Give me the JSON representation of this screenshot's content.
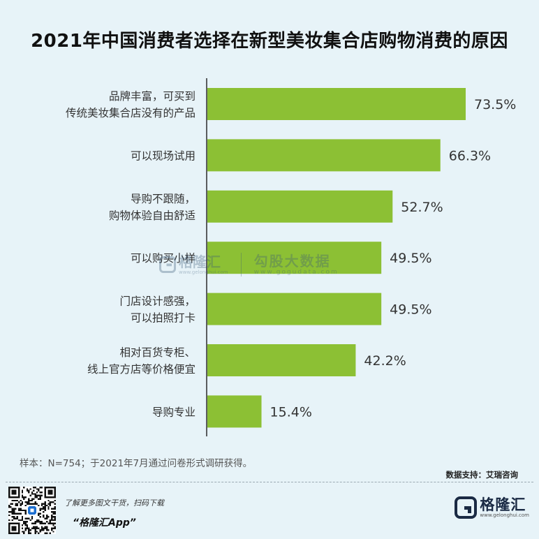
{
  "chart_data": {
    "type": "bar",
    "orientation": "horizontal",
    "title": "2021年中国消费者选择在新型美妆集合店购物消费的原因",
    "categories": [
      [
        "品牌丰富，可买到",
        "传统美妆集合店没有的产品"
      ],
      [
        "可以现场试用"
      ],
      [
        "导购不跟随，",
        "购物体验自由舒适"
      ],
      [
        "可以购买小样"
      ],
      [
        "门店设计感强，",
        "可以拍照打卡"
      ],
      [
        "相对百货专柜、",
        "线上官方店等价格便宜"
      ],
      [
        "导购专业"
      ]
    ],
    "values": [
      73.5,
      66.3,
      52.7,
      49.5,
      49.5,
      42.2,
      15.4
    ],
    "value_labels": [
      "73.5%",
      "66.3%",
      "52.7%",
      "49.5%",
      "49.5%",
      "42.2%",
      "15.4%"
    ],
    "xlim": [
      0,
      100
    ],
    "grid": false,
    "legend": "none",
    "bar_color": "#8cc034",
    "axis_color": "#2b2b2b"
  },
  "note": "样本：N=754；于2021年7月通过问卷形式调研获得。",
  "source": "数据支持：艾瑞咨询",
  "footer": {
    "line1": "了解更多图文干货，扫码下载",
    "line2": "“格隆汇App”"
  },
  "brand": {
    "name": "格隆汇",
    "site": "www.gelonghui.com"
  },
  "watermark": {
    "left_name": "格隆汇",
    "left_site": "www.gelonghui.com",
    "right_name": "勾股大数据",
    "right_site": "www.gogudata.com"
  }
}
